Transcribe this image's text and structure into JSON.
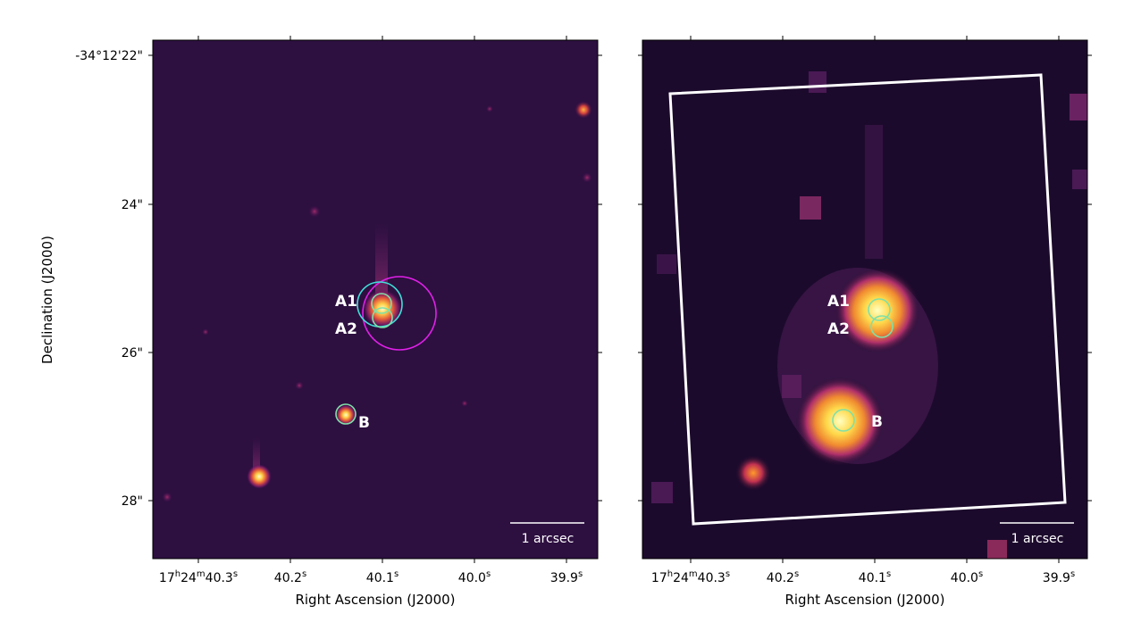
{
  "figure": {
    "left_panel": {
      "sources": [
        {
          "name": "A1"
        },
        {
          "name": "A2"
        },
        {
          "name": "B"
        }
      ],
      "scale_bar_label": "1 arcsec"
    },
    "right_panel": {
      "sources": [
        {
          "name": "A1"
        },
        {
          "name": "A2"
        },
        {
          "name": "B"
        }
      ],
      "scale_bar_label": "1 arcsec"
    },
    "y_axis": {
      "label": "Declination (J2000)",
      "ticks": [
        "-34°12'22\"",
        "24\"",
        "26\"",
        "28\""
      ]
    },
    "x_axis": {
      "label": "Right Ascension (J2000)",
      "ticks": [
        {
          "main": "17",
          "sup_h": "h",
          "mid": "24",
          "sup_m": "m",
          "rest": "40.3",
          "sup_s": "s"
        },
        {
          "main": "40.2",
          "sup_s": "s"
        },
        {
          "main": "40.1",
          "sup_s": "s"
        },
        {
          "main": "40.0",
          "sup_s": "s"
        },
        {
          "main": "39.9",
          "sup_s": "s"
        }
      ]
    },
    "colors": {
      "background": "#2a0f3d",
      "circle_cyan": "#3fe0d8",
      "circle_green": "#7fe0a8",
      "circle_magenta": "#e020e8",
      "aperture": "#ffffff"
    }
  }
}
